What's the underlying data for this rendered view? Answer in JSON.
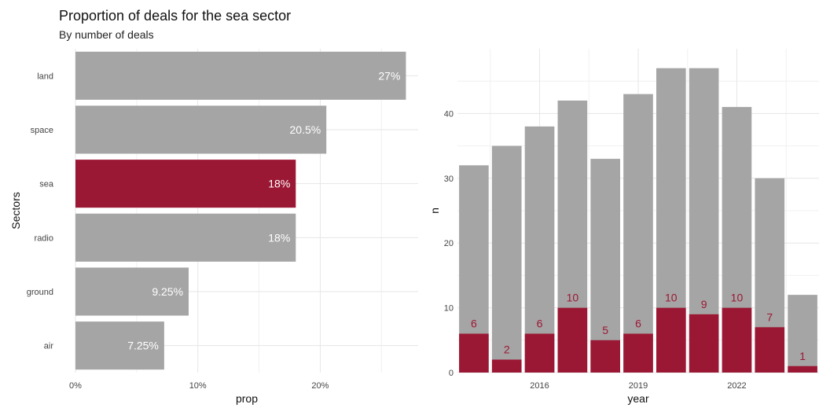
{
  "title": "Proportion of deals for the sea sector",
  "subtitle": "By number of deals",
  "colors": {
    "highlight": "#9b1834",
    "base": "#a5a5a5",
    "grid": "#e6e6e6",
    "text": "#444444"
  },
  "chart_data": [
    {
      "type": "bar",
      "orientation": "horizontal",
      "categories": [
        "land",
        "space",
        "sea",
        "radio",
        "ground",
        "air"
      ],
      "values": [
        0.27,
        0.205,
        0.18,
        0.18,
        0.0925,
        0.0725
      ],
      "labels": [
        "27%",
        "20.5%",
        "18%",
        "18%",
        "9.25%",
        "7.25%"
      ],
      "highlight": "sea",
      "xlabel": "prop",
      "ylabel": "Sectors",
      "xticks": [
        0,
        0.1,
        0.2
      ],
      "xtick_labels": [
        "0%",
        "10%",
        "20%"
      ],
      "xlim": [
        0,
        0.28
      ],
      "grid": true
    },
    {
      "type": "bar",
      "orientation": "vertical",
      "x": [
        2014,
        2015,
        2016,
        2017,
        2018,
        2019,
        2020,
        2021,
        2022,
        2023,
        2024
      ],
      "series": [
        {
          "values": [
            32,
            35,
            38,
            42,
            33,
            43,
            47,
            47,
            41,
            30,
            12
          ]
        },
        {
          "values": [
            6,
            2,
            6,
            10,
            5,
            6,
            10,
            9,
            10,
            7,
            1
          ]
        }
      ],
      "highlight_labels": [
        "6",
        "2",
        "6",
        "10",
        "5",
        "6",
        "10",
        "9",
        "10",
        "7",
        "1"
      ],
      "xlabel": "year",
      "ylabel": "n",
      "xticks": [
        2016,
        2019,
        2022
      ],
      "xtick_labels": [
        "2016",
        "2019",
        "2022"
      ],
      "yticks": [
        0,
        10,
        20,
        30,
        40
      ],
      "ytick_labels": [
        "0",
        "10",
        "20",
        "30",
        "40"
      ],
      "ylim": [
        0,
        50
      ],
      "grid": true
    }
  ]
}
